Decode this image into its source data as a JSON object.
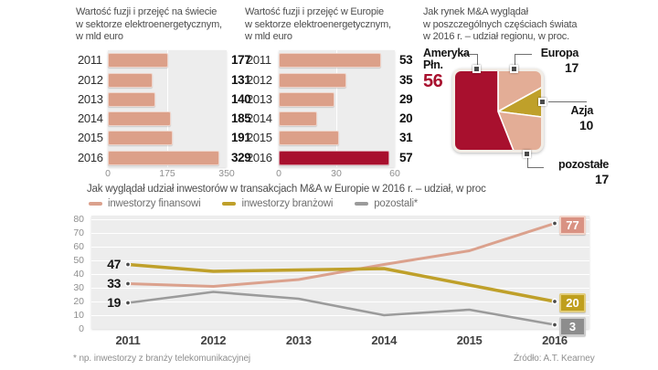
{
  "footnote": "* np. inwestorzy z branży telekomunikacyjnej",
  "source": "Źródło: A.T. Kearney",
  "colors": {
    "crimson": "#a8102e",
    "salmon_bar": "#dca089",
    "salmon_pie": "#e3ad96",
    "gold": "#bfa02a",
    "gray": "#9b9b9b",
    "plot_bg": "#ededed"
  },
  "chart_data": [
    {
      "type": "bar",
      "title": "Wartość fuzji i przejęć na świecie w sektorze elektroenergetycznym, w mld euro",
      "title_lines": [
        "Wartość fuzji i przejęć na świecie",
        "w sektorze elektroenergetycznym,",
        "w mld euro"
      ],
      "orientation": "horizontal",
      "categories": [
        "2011",
        "2012",
        "2013",
        "2014",
        "2015",
        "2016"
      ],
      "values": [
        177,
        131,
        140,
        185,
        191,
        329
      ],
      "xlim": [
        0,
        350
      ],
      "x_ticks": [
        "0",
        "175",
        "350"
      ],
      "bar_color": "#dca089"
    },
    {
      "type": "bar",
      "title": "Wartość fuzji i przejęć w Europie w sektorze elektroenergetycznym, w mld euro",
      "title_lines": [
        "Wartość fuzji i przejęć w Europie",
        "w sektorze elektroenergetycznym,",
        "w mld euro"
      ],
      "orientation": "horizontal",
      "categories": [
        "2011",
        "2012",
        "2013",
        "2014",
        "2015",
        "2016"
      ],
      "values": [
        53,
        35,
        29,
        20,
        31,
        57
      ],
      "xlim": [
        0,
        60
      ],
      "x_ticks": [
        "0",
        "30",
        "60"
      ],
      "bar_color": "#dca089",
      "highlight_last_color": "#a8102e"
    },
    {
      "type": "pie",
      "title": "Jak rynek M&A wyglądał w poszczególnych częściach świata w 2016 r. – udział regionu, w proc.",
      "title_lines": [
        "Jak rynek M&A wyglądał",
        "w poszczególnych częściach świata",
        "w 2016 r. – udział regionu, w proc."
      ],
      "slices": [
        {
          "label": "Ameryka Płn.",
          "label_lines": [
            "Ameryka",
            "Płn."
          ],
          "value": 56,
          "color": "#a8102e"
        },
        {
          "label": "Europa",
          "value": 17,
          "color": "#e3ad96"
        },
        {
          "label": "Azja",
          "value": 10,
          "color": "#bfa02a"
        },
        {
          "label": "pozostałe",
          "value": 17,
          "color": "#e3ad96"
        }
      ]
    },
    {
      "type": "line",
      "title": "Jak wyglądał udział inwestorów w transakcjach M&A w Europie w 2016 r. – udział, w proc",
      "x": [
        "2011",
        "2012",
        "2013",
        "2014",
        "2015",
        "2016"
      ],
      "ylim": [
        0,
        80
      ],
      "y_ticks": [
        80,
        70,
        60,
        50,
        40,
        30,
        20,
        10,
        0
      ],
      "grid": true,
      "legend_position": "top",
      "series": [
        {
          "name": "inwestorzy finansowi",
          "color": "#dba18d",
          "box_color": "#d99283",
          "box_border": "#f2d5ca",
          "values": [
            33,
            31,
            36,
            47,
            57,
            77
          ]
        },
        {
          "name": "inwestorzy branżowi",
          "color": "#bfa02a",
          "box_color": "#bf9f1d",
          "box_border": "#e2cd7c",
          "values": [
            47,
            42,
            43,
            44,
            32,
            20
          ]
        },
        {
          "name": "pozostali*",
          "color": "#9b9b9b",
          "box_color": "#8d8d8d",
          "box_border": "#cccccc",
          "values": [
            19,
            27,
            22,
            10,
            14,
            3
          ]
        }
      ]
    }
  ]
}
